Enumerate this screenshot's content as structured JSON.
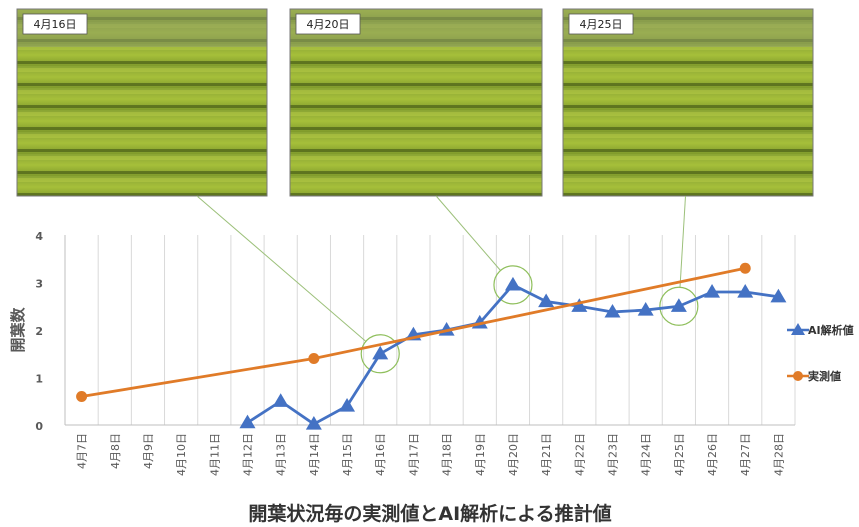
{
  "chart_data": {
    "type": "line",
    "title": "開葉状況毎の実測値とAI解析による推計値",
    "ylabel": "開葉数",
    "xlabel": "",
    "ylim": [
      0,
      4
    ],
    "yticks": [
      0,
      1,
      2,
      3,
      4
    ],
    "grid": "vertical",
    "legend_position": "right",
    "categories": [
      "4月7日",
      "4月8日",
      "4月9日",
      "4月10日",
      "4月11日",
      "4月12日",
      "4月13日",
      "4月14日",
      "4月15日",
      "4月16日",
      "4月17日",
      "4月18日",
      "4月19日",
      "4月20日",
      "4月21日",
      "4月22日",
      "4月23日",
      "4月24日",
      "4月25日",
      "4月26日",
      "4月27日",
      "4月28日"
    ],
    "series": [
      {
        "name": "AI解析値",
        "color": "#4472c4",
        "marker": "triangle",
        "values": [
          null,
          null,
          null,
          null,
          null,
          0.05,
          0.5,
          0.02,
          0.4,
          1.5,
          1.9,
          2.0,
          2.15,
          2.95,
          2.6,
          2.5,
          2.38,
          2.42,
          2.5,
          2.8,
          2.8,
          2.7
        ]
      },
      {
        "name": "実測値",
        "color": "#e07b28",
        "marker": "circle",
        "values": [
          0.6,
          null,
          null,
          null,
          null,
          null,
          null,
          1.4,
          null,
          null,
          null,
          null,
          null,
          null,
          null,
          null,
          null,
          null,
          null,
          null,
          3.3,
          null
        ]
      }
    ],
    "photos": [
      {
        "label": "4月16日",
        "category": "4月16日"
      },
      {
        "label": "4月20日",
        "category": "4月20日"
      },
      {
        "label": "4月25日",
        "category": "4月25日"
      }
    ]
  }
}
